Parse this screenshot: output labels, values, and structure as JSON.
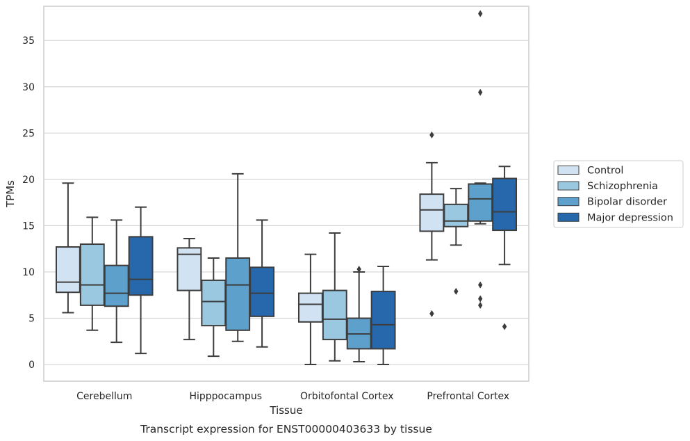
{
  "chart_data": {
    "type": "box",
    "title": "",
    "caption": "Transcript expression for ENST00000403633 by tissue",
    "xlabel": "Tissue",
    "ylabel": "TPMs",
    "ylim": [
      -1.8,
      38.7
    ],
    "yticks": [
      0,
      5,
      10,
      15,
      20,
      25,
      30,
      35
    ],
    "grid": "horizontal",
    "legend_position": "right",
    "categories": [
      "Cerebellum",
      "Hipppocampus",
      "Orbitofontal Cortex",
      "Prefrontal Cortex"
    ],
    "series": [
      {
        "name": "Control",
        "color": "#d1e2f2",
        "boxes": [
          {
            "whislo": 5.6,
            "q1": 7.8,
            "med": 8.9,
            "q3": 12.7,
            "whishi": 19.6,
            "fliers": []
          },
          {
            "whislo": 2.7,
            "q1": 8.0,
            "med": 11.9,
            "q3": 12.6,
            "whishi": 13.6,
            "fliers": []
          },
          {
            "whislo": 0.0,
            "q1": 4.6,
            "med": 6.5,
            "q3": 7.7,
            "whishi": 11.9,
            "fliers": []
          },
          {
            "whislo": 11.3,
            "q1": 14.4,
            "med": 16.7,
            "q3": 18.4,
            "whishi": 21.8,
            "fliers": [
              5.5,
              24.8
            ]
          }
        ]
      },
      {
        "name": "Schizophrenia",
        "color": "#9ac8e0",
        "boxes": [
          {
            "whislo": 3.7,
            "q1": 6.4,
            "med": 8.6,
            "q3": 13.0,
            "whishi": 15.9,
            "fliers": []
          },
          {
            "whislo": 0.9,
            "q1": 4.2,
            "med": 6.8,
            "q3": 9.1,
            "whishi": 11.5,
            "fliers": []
          },
          {
            "whislo": 0.4,
            "q1": 2.7,
            "med": 4.9,
            "q3": 8.0,
            "whishi": 14.2,
            "fliers": []
          },
          {
            "whislo": 12.9,
            "q1": 14.9,
            "med": 15.5,
            "q3": 17.3,
            "whishi": 19.0,
            "fliers": [
              7.9
            ]
          }
        ]
      },
      {
        "name": "Bipolar disorder",
        "color": "#5da0cb",
        "boxes": [
          {
            "whislo": 2.4,
            "q1": 6.3,
            "med": 7.7,
            "q3": 10.7,
            "whishi": 15.6,
            "fliers": []
          },
          {
            "whislo": 2.5,
            "q1": 3.7,
            "med": 8.6,
            "q3": 11.5,
            "whishi": 20.6,
            "fliers": []
          },
          {
            "whislo": 0.3,
            "q1": 1.7,
            "med": 3.3,
            "q3": 5.0,
            "whishi": 10.0,
            "fliers": [
              10.3
            ]
          },
          {
            "whislo": 15.2,
            "q1": 15.5,
            "med": 17.9,
            "q3": 19.5,
            "whishi": 19.6,
            "fliers": [
              6.4,
              7.1,
              8.6,
              29.4,
              37.9
            ]
          }
        ]
      },
      {
        "name": "Major depression",
        "color": "#2767ab",
        "boxes": [
          {
            "whislo": 1.2,
            "q1": 7.5,
            "med": 9.2,
            "q3": 13.8,
            "whishi": 17.0,
            "fliers": []
          },
          {
            "whislo": 1.9,
            "q1": 5.2,
            "med": 7.7,
            "q3": 10.5,
            "whishi": 15.6,
            "fliers": []
          },
          {
            "whislo": 0.0,
            "q1": 1.7,
            "med": 4.3,
            "q3": 7.9,
            "whishi": 10.6,
            "fliers": []
          },
          {
            "whislo": 10.8,
            "q1": 14.5,
            "med": 16.5,
            "q3": 20.1,
            "whishi": 21.4,
            "fliers": [
              4.1
            ]
          }
        ]
      }
    ]
  }
}
